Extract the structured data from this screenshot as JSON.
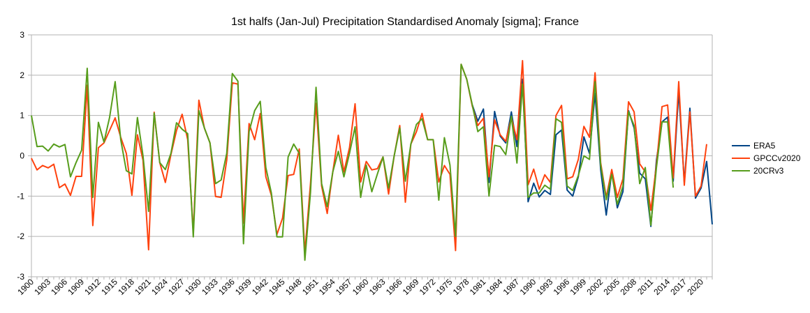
{
  "chart_data": {
    "type": "line",
    "title": "1st halfs (Jan-Jul) Precipitation Standardised Anomaly [sigma]; France",
    "xlabel": "",
    "ylabel": "",
    "x_start": 1900,
    "x_end": 2022,
    "x_tick_step": 3,
    "ylim": [
      -3,
      3
    ],
    "y_ticks": [
      3,
      2,
      1,
      0,
      -1,
      -2,
      -3
    ],
    "grid": true,
    "legend_position": "right",
    "series": [
      {
        "name": "ERA5",
        "color": "#004586",
        "start_year": 1979,
        "values": [
          1.26,
          0.86,
          1.16,
          -0.66,
          1.1,
          0.49,
          0.32,
          1.09,
          0.23,
          1.9,
          -1.14,
          -0.68,
          -1.02,
          -0.86,
          -0.96,
          0.52,
          0.64,
          -0.85,
          -1.0,
          -0.52,
          0.47,
          0.06,
          1.55,
          -0.34,
          -1.47,
          -0.4,
          -1.29,
          -0.89,
          1.12,
          0.69,
          -0.43,
          -0.57,
          -1.75,
          -0.11,
          0.84,
          0.96,
          -0.63,
          1.61,
          -0.66,
          1.18,
          -1.05,
          -0.8,
          -0.14,
          -1.7
        ]
      },
      {
        "name": "GPCCv2020",
        "color": "#ff420e",
        "start_year": 1900,
        "values": [
          -0.06,
          -0.35,
          -0.24,
          -0.3,
          -0.21,
          -0.79,
          -0.7,
          -0.98,
          -0.51,
          -0.51,
          1.75,
          -1.73,
          0.2,
          0.32,
          0.63,
          0.94,
          0.46,
          0.06,
          -0.98,
          0.52,
          -0.11,
          -2.33,
          1.08,
          -0.17,
          -0.66,
          0.03,
          0.63,
          1.03,
          0.4,
          -1.9,
          1.38,
          0.69,
          0.32,
          -1.01,
          -1.03,
          -0.11,
          1.81,
          1.78,
          -1.67,
          0.8,
          0.4,
          1.05,
          -0.52,
          -0.98,
          -1.95,
          -1.55,
          -0.49,
          -0.46,
          0.17,
          -2.4,
          -0.7,
          1.3,
          -0.75,
          -1.43,
          -0.4,
          0.51,
          -0.4,
          0.2,
          1.29,
          -0.65,
          -0.14,
          -0.35,
          -0.32,
          -0.03,
          -0.95,
          0.0,
          0.75,
          -1.15,
          0.29,
          0.6,
          1.05,
          0.4,
          0.4,
          -0.65,
          -0.24,
          -0.46,
          -2.35,
          2.27,
          1.9,
          1.23,
          0.75,
          0.93,
          -0.52,
          0.89,
          0.52,
          0.36,
          0.95,
          0.4,
          2.36,
          -0.72,
          -0.33,
          -0.83,
          -0.47,
          -0.66,
          1.0,
          1.25,
          -0.57,
          -0.52,
          -0.09,
          0.73,
          0.46,
          2.06,
          -0.17,
          -1.03,
          -0.34,
          -1.03,
          -0.57,
          1.34,
          1.09,
          -0.2,
          -0.4,
          -1.35,
          -0.23,
          1.22,
          1.26,
          -0.55,
          1.84,
          -0.73,
          1.09,
          -1.0,
          -0.75,
          0.29
        ]
      },
      {
        "name": "20CRv3",
        "color": "#579d1c",
        "start_year": 1900,
        "values": [
          1.0,
          0.23,
          0.24,
          0.12,
          0.29,
          0.22,
          0.28,
          -0.52,
          -0.17,
          0.14,
          2.17,
          -1.03,
          0.83,
          0.34,
          0.95,
          1.84,
          0.4,
          -0.37,
          -0.45,
          0.95,
          0.0,
          -1.38,
          1.06,
          -0.17,
          -0.34,
          0.06,
          0.82,
          0.66,
          0.55,
          -2.01,
          1.12,
          0.69,
          0.32,
          -0.69,
          -0.6,
          0.06,
          2.04,
          1.85,
          -2.18,
          0.6,
          1.12,
          1.35,
          -0.29,
          -0.92,
          -2.01,
          -2.01,
          -0.03,
          0.29,
          0.06,
          -2.59,
          -0.92,
          1.7,
          -0.69,
          -1.26,
          -0.4,
          0.11,
          -0.52,
          0.06,
          0.72,
          -1.03,
          -0.23,
          -0.89,
          -0.45,
          -0.03,
          -0.8,
          0.0,
          0.69,
          -0.63,
          0.29,
          0.78,
          0.92,
          0.4,
          0.4,
          -1.1,
          0.45,
          -0.23,
          -2.0,
          2.27,
          1.9,
          1.26,
          0.6,
          0.72,
          -1.0,
          0.26,
          0.23,
          0.03,
          0.98,
          -0.18,
          1.78,
          -1.03,
          -0.92,
          -0.92,
          -0.73,
          -0.83,
          0.92,
          0.83,
          -0.75,
          -0.86,
          -0.49,
          0.0,
          -0.09,
          1.84,
          -0.23,
          -1.09,
          -0.46,
          -1.2,
          -0.75,
          1.09,
          0.75,
          -0.69,
          -0.29,
          -1.72,
          -0.29,
          0.84,
          0.84,
          -0.79
        ]
      }
    ]
  }
}
